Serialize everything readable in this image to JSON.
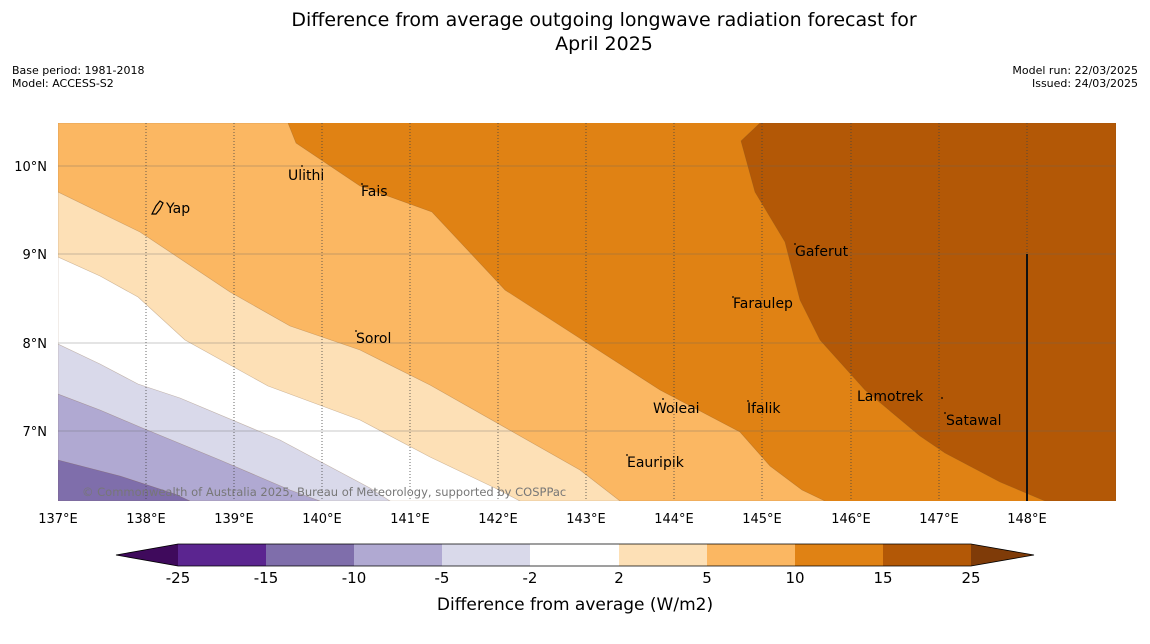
{
  "title_line1": "Difference from average outgoing longwave radiation forecast for",
  "title_line2": "April 2025",
  "meta_left": {
    "base_period": "Base period: 1981-2018",
    "model": "Model: ACCESS-S2"
  },
  "meta_right": {
    "model_run": "Model run: 22/03/2025",
    "issued": "Issued: 24/03/2025"
  },
  "map": {
    "lon_labels": [
      "137°E",
      "138°E",
      "139°E",
      "140°E",
      "141°E",
      "142°E",
      "143°E",
      "144°E",
      "145°E",
      "146°E",
      "147°E",
      "148°E"
    ],
    "lat_labels": [
      "10°N",
      "9°N",
      "8°N",
      "7°N"
    ],
    "places": [
      "Ulithi",
      "Fais",
      "Yap",
      "Gaferut",
      "Faraulep",
      "Sorol",
      "Lamotrek",
      "Woleai",
      "Ifalik",
      "Satawal",
      "Eauripik"
    ],
    "copyright": "© Commonwealth of Australia 2025, Bureau of Meteorology, supported by COSPPac",
    "colors": {
      "lt_-25": "#3f0a5c",
      "-25_-15": "#5b2590",
      "-15_-10": "#7f6eab",
      "-10_-5": "#b0a9d2",
      "-5_-2": "#d9d9ea",
      "-2_2": "#ffffff",
      "2_5": "#fde0b6",
      "5_10": "#fbb762",
      "10_15": "#e08214",
      "15_25": "#b35806",
      "gt_25": "#7f3b08"
    }
  },
  "colorbar": {
    "ticks": [
      "-25",
      "-15",
      "-10",
      "-5",
      "-2",
      "2",
      "5",
      "10",
      "15",
      "25"
    ],
    "label": "Difference from average (W/m2)"
  }
}
